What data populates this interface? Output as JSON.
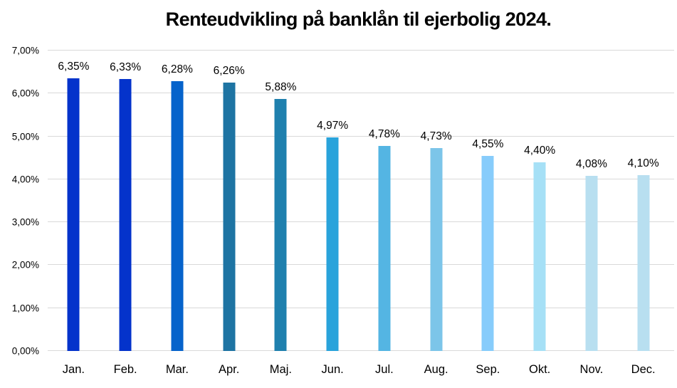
{
  "title": "Renteudvikling på banklån til ejerbolig 2024.",
  "chart_data": {
    "type": "bar",
    "title": "Renteudvikling på banklån til ejerbolig 2024.",
    "categories": [
      "Jan.",
      "Feb.",
      "Mar.",
      "Apr.",
      "Maj.",
      "Jun.",
      "Jul.",
      "Aug.",
      "Sep.",
      "Okt.",
      "Nov.",
      "Dec."
    ],
    "values": [
      6.35,
      6.33,
      6.28,
      6.26,
      5.88,
      4.97,
      4.78,
      4.73,
      4.55,
      4.4,
      4.08,
      4.1
    ],
    "value_labels": [
      "6,35%",
      "6,33%",
      "6,28%",
      "6,26%",
      "5,88%",
      "4,97%",
      "4,78%",
      "4,73%",
      "4,55%",
      "4,40%",
      "4,08%",
      "4,10%"
    ],
    "bar_colors": [
      "#0433cb",
      "#0433cb",
      "#0663cb",
      "#1e74a3",
      "#1f80ae",
      "#29a3db",
      "#54b5e3",
      "#7cc5e9",
      "#87ccfb",
      "#a6e0f6",
      "#b8dff0",
      "#b8dff0"
    ],
    "xlabel": "",
    "ylabel": "",
    "ylim": [
      0,
      7
    ],
    "ytick_step": 1,
    "ytick_labels": [
      "0,00%",
      "1,00%",
      "2,00%",
      "3,00%",
      "4,00%",
      "5,00%",
      "6,00%",
      "7,00%"
    ],
    "grid": true,
    "gridline_color": "#d9d9d9",
    "legend": false,
    "text_color": "#000000",
    "background_color": "#ffffff"
  }
}
